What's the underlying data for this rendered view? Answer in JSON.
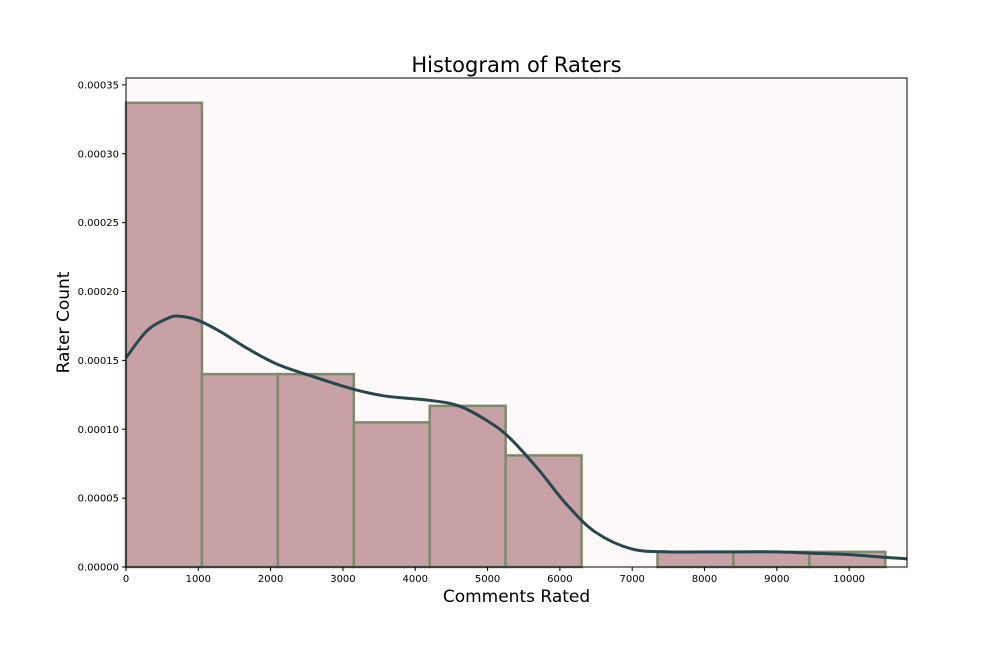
{
  "chart_data": {
    "type": "bar",
    "title": "Histogram of Raters",
    "xlabel": "Comments Rated",
    "ylabel": "Rater Count",
    "xlim": [
      0,
      10800
    ],
    "ylim": [
      0,
      0.000355
    ],
    "x_ticks": [
      0,
      1000,
      2000,
      3000,
      4000,
      5000,
      6000,
      7000,
      8000,
      9000,
      10000
    ],
    "x_tick_labels": [
      "0",
      "1000",
      "2000",
      "3000",
      "4000",
      "5000",
      "6000",
      "7000",
      "8000",
      "9000",
      "10000"
    ],
    "y_ticks": [
      0,
      5e-05,
      0.0001,
      0.00015,
      0.0002,
      0.00025,
      0.0003,
      0.00035
    ],
    "y_tick_labels": [
      "0.00000",
      "0.00005",
      "0.00010",
      "0.00015",
      "0.00020",
      "0.00025",
      "0.00030",
      "0.00035"
    ],
    "bins": [
      {
        "start": 0,
        "end": 1050,
        "value": 0.000337
      },
      {
        "start": 1050,
        "end": 2100,
        "value": 0.00014
      },
      {
        "start": 2100,
        "end": 3150,
        "value": 0.00014
      },
      {
        "start": 3150,
        "end": 4200,
        "value": 0.000105
      },
      {
        "start": 4200,
        "end": 5250,
        "value": 0.000117
      },
      {
        "start": 5250,
        "end": 6300,
        "value": 8.1e-05
      },
      {
        "start": 6300,
        "end": 7350,
        "value": 0.0
      },
      {
        "start": 7350,
        "end": 8400,
        "value": 1.1e-05
      },
      {
        "start": 8400,
        "end": 9450,
        "value": 1.1e-05
      },
      {
        "start": 9450,
        "end": 10500,
        "value": 1.1e-05
      }
    ],
    "kde_curve": {
      "x": [
        0,
        300,
        600,
        750,
        1000,
        1300,
        1700,
        2100,
        2600,
        3150,
        3600,
        4200,
        4600,
        5000,
        5300,
        5700,
        6100,
        6500,
        7000,
        7500,
        8000,
        8500,
        9000,
        9500,
        10000,
        10500,
        10800
      ],
      "y": [
        0.000152,
        0.000172,
        0.000181,
        0.000182,
        0.000179,
        0.000171,
        0.000158,
        0.000147,
        0.000138,
        0.000129,
        0.000124,
        0.000121,
        0.000117,
        0.000106,
        9.4e-05,
        7.1e-05,
        4.5e-05,
        2.5e-05,
        1.3e-05,
        1.1e-05,
        1.1e-05,
        1.1e-05,
        1.1e-05,
        1e-05,
        9e-06,
        7e-06,
        6e-06
      ]
    },
    "grid": false,
    "colors": {
      "plot_background": "#fdf9f8",
      "bar_fill": "#c7a1a5",
      "bar_edge": "#7e8a6c",
      "kde_line": "#27474e",
      "axis": "#000000"
    }
  }
}
